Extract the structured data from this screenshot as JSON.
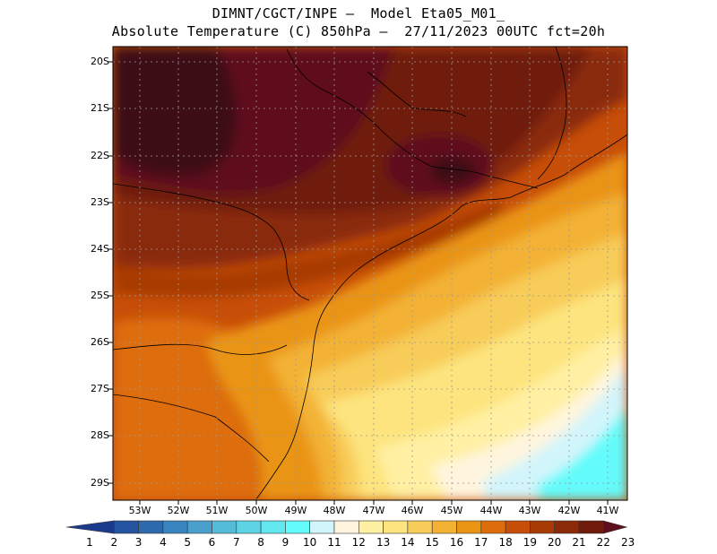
{
  "header": {
    "line1": "DIMNT/CGCT/INPE –  Model Eta05_M01_",
    "line2": "Absolute Temperature (C) 850hPa –  27/11/2023 00UTC fct=20h"
  },
  "map": {
    "lat_labels": [
      "20S",
      "21S",
      "22S",
      "23S",
      "24S",
      "25S",
      "26S",
      "27S",
      "28S",
      "29S"
    ],
    "lon_labels": [
      "53W",
      "52W",
      "51W",
      "50W",
      "49W",
      "48W",
      "47W",
      "46W",
      "45W",
      "44W",
      "43W",
      "42W",
      "41W"
    ],
    "grid": "dotted"
  },
  "colorbar": {
    "colors": [
      "#1b3a8c",
      "#24539f",
      "#2d6aad",
      "#3a85bf",
      "#4aa0cc",
      "#55bcd8",
      "#5ed3e3",
      "#62e7ee",
      "#64fbfb",
      "#d2f5fb",
      "#fff5de",
      "#fff0a3",
      "#fde47e",
      "#f8cc58",
      "#f3b234",
      "#ea9413",
      "#dd6d0b",
      "#c74e08",
      "#a83a06",
      "#8a2a08",
      "#701c0d",
      "#5e0f1e"
    ],
    "labels": [
      "1",
      "2",
      "3",
      "4",
      "5",
      "6",
      "7",
      "8",
      "9",
      "10",
      "11",
      "12",
      "13",
      "14",
      "15",
      "16",
      "17",
      "18",
      "19",
      "20",
      "21",
      "22",
      "23"
    ]
  }
}
